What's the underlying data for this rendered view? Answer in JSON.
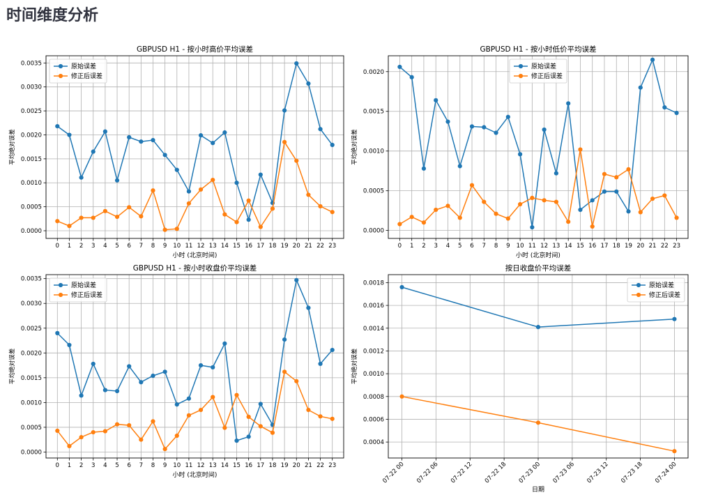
{
  "page": {
    "title": "时间维度分析"
  },
  "colors": {
    "original": "#1f77b4",
    "corrected": "#ff7f0e",
    "grid": "#b0b0b0",
    "axis": "#000000"
  },
  "chart_data": [
    {
      "id": "high",
      "type": "line",
      "title": "GBPUSD H1 - 按小时高价平均误差",
      "xlabel": "小时 (北京时间)",
      "ylabel": "平均绝对误差",
      "x": [
        0,
        1,
        2,
        3,
        4,
        5,
        6,
        7,
        8,
        9,
        10,
        11,
        12,
        13,
        14,
        15,
        16,
        17,
        18,
        19,
        20,
        21,
        22,
        23
      ],
      "ylim": [
        -0.00016,
        0.00365
      ],
      "yticks": [
        0.0,
        0.0005,
        0.001,
        0.0015,
        0.002,
        0.0025,
        0.003,
        0.0035
      ],
      "ytick_labels": [
        "0.0000",
        "0.0005",
        "0.0010",
        "0.0015",
        "0.0020",
        "0.0025",
        "0.0030",
        "0.0035"
      ],
      "legend": "upper-left",
      "grid": true,
      "series": [
        {
          "name": "原始误差",
          "color": "#1f77b4",
          "values": [
            0.00218,
            0.002,
            0.00111,
            0.00165,
            0.00207,
            0.00105,
            0.00195,
            0.00186,
            0.00189,
            0.00158,
            0.00127,
            0.00082,
            0.00199,
            0.00183,
            0.00205,
            0.001,
            0.00023,
            0.00117,
            0.00058,
            0.00251,
            0.00349,
            0.00307,
            0.00212,
            0.00179
          ]
        },
        {
          "name": "修正后误差",
          "color": "#ff7f0e",
          "values": [
            0.0002,
            0.0001,
            0.00027,
            0.00027,
            0.00041,
            0.00029,
            0.00049,
            0.0003,
            0.00084,
            2e-05,
            4e-05,
            0.00057,
            0.00086,
            0.00106,
            0.00034,
            0.00018,
            0.00063,
            8e-05,
            0.00046,
            0.00185,
            0.00146,
            0.00075,
            0.00051,
            0.00039
          ]
        }
      ]
    },
    {
      "id": "low",
      "type": "line",
      "title": "GBPUSD H1 - 按小时低价平均误差",
      "xlabel": "小时 (北京时间)",
      "ylabel": "平均绝对误差",
      "x": [
        0,
        1,
        2,
        3,
        4,
        5,
        6,
        7,
        8,
        9,
        10,
        11,
        12,
        13,
        14,
        15,
        16,
        17,
        18,
        19,
        20,
        21,
        22,
        23
      ],
      "ylim": [
        -0.0001,
        0.0022
      ],
      "yticks": [
        0.0,
        0.0005,
        0.001,
        0.0015,
        0.002
      ],
      "ytick_labels": [
        "0.0000",
        "0.0005",
        "0.0010",
        "0.0015",
        "0.0020"
      ],
      "legend": "upper-center",
      "grid": true,
      "series": [
        {
          "name": "原始误差",
          "color": "#1f77b4",
          "values": [
            0.00206,
            0.00193,
            0.00078,
            0.00164,
            0.00137,
            0.00081,
            0.00131,
            0.0013,
            0.00123,
            0.00143,
            0.00096,
            4e-05,
            0.00127,
            0.00072,
            0.0016,
            0.00026,
            0.00038,
            0.00049,
            0.00049,
            0.00024,
            0.0018,
            0.00215,
            0.00155,
            0.00148
          ]
        },
        {
          "name": "修正后误差",
          "color": "#ff7f0e",
          "values": [
            8e-05,
            0.00017,
            0.0001,
            0.00026,
            0.00031,
            0.00016,
            0.00057,
            0.00036,
            0.00021,
            0.00015,
            0.00033,
            0.00041,
            0.00038,
            0.00036,
            0.00011,
            0.00102,
            5e-05,
            0.00071,
            0.00067,
            0.00077,
            0.00023,
            0.0004,
            0.00044,
            0.00016
          ]
        }
      ]
    },
    {
      "id": "close",
      "type": "line",
      "title": "GBPUSD H1 - 按小时收盘价平均误差",
      "xlabel": "小时 (北京时间)",
      "ylabel": "平均绝对误差",
      "x": [
        0,
        1,
        2,
        3,
        4,
        5,
        6,
        7,
        8,
        9,
        10,
        11,
        12,
        13,
        14,
        15,
        16,
        17,
        18,
        19,
        20,
        21,
        22,
        23
      ],
      "ylim": [
        -0.00012,
        0.00358
      ],
      "yticks": [
        0.0,
        0.0005,
        0.001,
        0.0015,
        0.002,
        0.0025,
        0.003,
        0.0035
      ],
      "ytick_labels": [
        "0.0000",
        "0.0005",
        "0.0010",
        "0.0015",
        "0.0020",
        "0.0025",
        "0.0030",
        "0.0035"
      ],
      "legend": "upper-left",
      "grid": true,
      "series": [
        {
          "name": "原始误差",
          "color": "#1f77b4",
          "values": [
            0.0024,
            0.00216,
            0.00114,
            0.00178,
            0.00125,
            0.00123,
            0.00173,
            0.00141,
            0.00154,
            0.00162,
            0.00096,
            0.00108,
            0.00175,
            0.00171,
            0.00219,
            0.00023,
            0.00031,
            0.00097,
            0.00055,
            0.00227,
            0.00347,
            0.00291,
            0.00178,
            0.00206
          ]
        },
        {
          "name": "修正后误差",
          "color": "#ff7f0e",
          "values": [
            0.00043,
            0.00012,
            0.0003,
            0.0004,
            0.00042,
            0.00056,
            0.00054,
            0.00025,
            0.00062,
            6e-05,
            0.00033,
            0.00074,
            0.00085,
            0.00111,
            0.00049,
            0.00115,
            0.00071,
            0.00052,
            0.00039,
            0.00162,
            0.00143,
            0.00085,
            0.00072,
            0.00067
          ]
        }
      ]
    },
    {
      "id": "daily",
      "type": "line",
      "title": "按日收盘价平均误差",
      "xlabel": "日期",
      "ylabel": "平均绝对误差",
      "x": [
        "07-22 00",
        "07-23 00",
        "07-24 00"
      ],
      "x_hours": [
        0,
        24,
        48
      ],
      "xlim_hours": [
        -2.4,
        50.4
      ],
      "xticks": [
        "07-22 00",
        "07-22 06",
        "07-22 12",
        "07-22 18",
        "07-23 00",
        "07-23 06",
        "07-23 12",
        "07-23 18",
        "07-24 00"
      ],
      "ylim": [
        0.00026,
        0.00187
      ],
      "yticks": [
        0.0004,
        0.0006,
        0.0008,
        0.001,
        0.0012,
        0.0014,
        0.0016,
        0.0018
      ],
      "ytick_labels": [
        "0.0004",
        "0.0006",
        "0.0008",
        "0.0010",
        "0.0012",
        "0.0014",
        "0.0016",
        "0.0018"
      ],
      "legend": "upper-right",
      "grid": true,
      "series": [
        {
          "name": "原始误差",
          "color": "#1f77b4",
          "values": [
            0.00176,
            0.00141,
            0.00148
          ]
        },
        {
          "name": "修正后误差",
          "color": "#ff7f0e",
          "values": [
            0.0008,
            0.00057,
            0.00032
          ]
        }
      ]
    }
  ]
}
